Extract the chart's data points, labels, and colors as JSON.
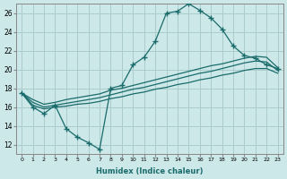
{
  "xlabel": "Humidex (Indice chaleur)",
  "background_color": "#cce8e8",
  "grid_color": "#aacccc",
  "line_color": "#1a6b6b",
  "x_values": [
    0,
    1,
    2,
    3,
    4,
    5,
    6,
    7,
    8,
    9,
    10,
    11,
    12,
    13,
    14,
    15,
    16,
    17,
    18,
    19,
    20,
    21,
    22,
    23
  ],
  "line1": [
    17.5,
    16.0,
    15.3,
    16.2,
    13.7,
    12.8,
    12.2,
    11.5,
    18.0,
    18.3,
    20.5,
    21.3,
    23.0,
    26.0,
    26.2,
    27.0,
    26.3,
    25.5,
    24.3,
    22.5,
    21.5,
    21.2,
    20.5,
    20.1
  ],
  "line2": [
    17.5,
    16.8,
    16.3,
    16.5,
    16.8,
    17.0,
    17.2,
    17.4,
    17.8,
    18.0,
    18.3,
    18.6,
    18.9,
    19.2,
    19.5,
    19.8,
    20.1,
    20.4,
    20.6,
    20.9,
    21.2,
    21.4,
    21.3,
    20.2
  ],
  "line3": [
    17.5,
    16.5,
    16.0,
    16.2,
    16.4,
    16.6,
    16.8,
    17.0,
    17.3,
    17.6,
    17.9,
    18.1,
    18.4,
    18.7,
    19.0,
    19.3,
    19.6,
    19.8,
    20.1,
    20.4,
    20.7,
    20.9,
    20.8,
    19.9
  ],
  "line4": [
    17.5,
    16.2,
    15.8,
    16.0,
    16.1,
    16.3,
    16.4,
    16.6,
    16.9,
    17.1,
    17.4,
    17.6,
    17.9,
    18.1,
    18.4,
    18.6,
    18.9,
    19.1,
    19.4,
    19.6,
    19.9,
    20.1,
    20.1,
    19.6
  ],
  "ylim": [
    11,
    27
  ],
  "yticks": [
    12,
    14,
    16,
    18,
    20,
    22,
    24,
    26
  ],
  "xlim": [
    -0.5,
    23.5
  ]
}
